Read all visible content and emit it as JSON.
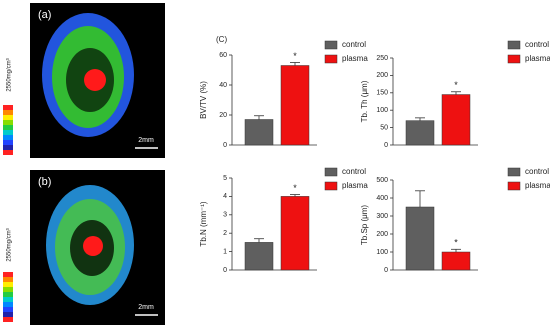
{
  "images": [
    {
      "label": "(a)",
      "scale_bar": "2mm",
      "colorbar_label": "2550mg/cm³"
    },
    {
      "label": "(b)",
      "scale_bar": "2mm",
      "colorbar_label": "2550mg/cm³"
    }
  ],
  "panel_label": "(C)",
  "chart_data": [
    {
      "type": "bar",
      "y_label": "BV/TV (%)",
      "categories": [
        null
      ],
      "ylim": [
        0,
        60
      ],
      "yticks": [
        0,
        20,
        40,
        60
      ],
      "annotation": "*",
      "series": [
        {
          "name": "control",
          "color": "#5f5f5f",
          "values": [
            17
          ],
          "errors": [
            2.5
          ]
        },
        {
          "name": "plasma",
          "color": "#ee1111",
          "values": [
            53
          ],
          "errors": [
            2
          ]
        }
      ]
    },
    {
      "type": "bar",
      "y_label": "Tb. Th (μm)",
      "categories": [
        null
      ],
      "ylim": [
        0,
        250
      ],
      "yticks": [
        0,
        50,
        100,
        150,
        200,
        250
      ],
      "annotation": "*",
      "series": [
        {
          "name": "control",
          "color": "#5f5f5f",
          "values": [
            70
          ],
          "errors": [
            8
          ]
        },
        {
          "name": "plasma",
          "color": "#ee1111",
          "values": [
            145
          ],
          "errors": [
            8
          ]
        }
      ]
    },
    {
      "type": "bar",
      "y_label": "Tb.N (mm⁻¹)",
      "categories": [
        null
      ],
      "ylim": [
        0,
        5
      ],
      "yticks": [
        0,
        1,
        2,
        3,
        4,
        5
      ],
      "annotation": "*",
      "series": [
        {
          "name": "control",
          "color": "#5f5f5f",
          "values": [
            1.5
          ],
          "errors": [
            0.2
          ]
        },
        {
          "name": "plasma",
          "color": "#ee1111",
          "values": [
            4.0
          ],
          "errors": [
            0.1
          ]
        }
      ]
    },
    {
      "type": "bar",
      "y_label": "Tb.Sp (μm)",
      "categories": [
        null
      ],
      "ylim": [
        0,
        500
      ],
      "yticks": [
        0,
        100,
        200,
        300,
        400,
        500
      ],
      "annotation": "*",
      "series": [
        {
          "name": "control",
          "color": "#5f5f5f",
          "values": [
            350
          ],
          "errors": [
            90
          ]
        },
        {
          "name": "plasma",
          "color": "#ee1111",
          "values": [
            100
          ],
          "errors": [
            15
          ]
        }
      ]
    }
  ]
}
